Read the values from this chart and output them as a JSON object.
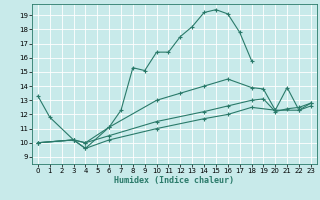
{
  "xlabel": "Humidex (Indice chaleur)",
  "bg_color": "#c8eaea",
  "grid_color": "#ffffff",
  "line_color": "#2a7a6a",
  "xlim": [
    -0.5,
    23.5
  ],
  "ylim": [
    8.5,
    19.8
  ],
  "yticks": [
    9,
    10,
    11,
    12,
    13,
    14,
    15,
    16,
    17,
    18,
    19
  ],
  "xticks": [
    0,
    1,
    2,
    3,
    4,
    5,
    6,
    7,
    8,
    9,
    10,
    11,
    12,
    13,
    14,
    15,
    16,
    17,
    18,
    19,
    20,
    21,
    22,
    23
  ],
  "line1_x": [
    0,
    1,
    3,
    4,
    6,
    7,
    8,
    9,
    10,
    11,
    12,
    13,
    14,
    15,
    16,
    17,
    18
  ],
  "line1_y": [
    13.3,
    11.8,
    10.2,
    9.6,
    11.1,
    12.3,
    15.3,
    15.1,
    16.4,
    16.4,
    17.5,
    18.2,
    19.2,
    19.4,
    19.1,
    17.8,
    15.8
  ],
  "line2_x": [
    0,
    3,
    4,
    6,
    10,
    12,
    14,
    16,
    18,
    19,
    20,
    21,
    22,
    23
  ],
  "line2_y": [
    10.0,
    10.2,
    10.0,
    11.1,
    13.0,
    13.5,
    14.0,
    14.5,
    13.9,
    13.8,
    12.3,
    13.9,
    12.3,
    12.8
  ],
  "line3_x": [
    0,
    3,
    4,
    6,
    10,
    14,
    16,
    18,
    19,
    20,
    21,
    22,
    23
  ],
  "line3_y": [
    10.0,
    10.2,
    10.0,
    10.5,
    11.5,
    12.2,
    12.6,
    13.0,
    13.1,
    12.2,
    12.4,
    12.5,
    12.8
  ],
  "line4_x": [
    0,
    3,
    4,
    6,
    10,
    14,
    16,
    18,
    20,
    22,
    23
  ],
  "line4_y": [
    10.0,
    10.2,
    9.6,
    10.2,
    11.0,
    11.7,
    12.0,
    12.5,
    12.3,
    12.3,
    12.6
  ]
}
